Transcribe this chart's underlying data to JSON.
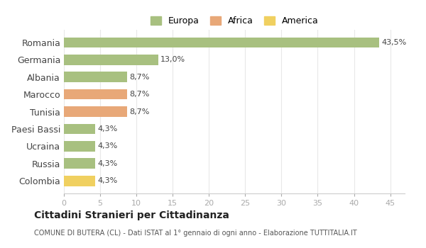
{
  "categories": [
    "Romania",
    "Germania",
    "Albania",
    "Marocco",
    "Tunisia",
    "Paesi Bassi",
    "Ucraina",
    "Russia",
    "Colombia"
  ],
  "values": [
    43.5,
    13.0,
    8.7,
    8.7,
    8.7,
    4.3,
    4.3,
    4.3,
    4.3
  ],
  "labels": [
    "43,5%",
    "13,0%",
    "8,7%",
    "8,7%",
    "8,7%",
    "4,3%",
    "4,3%",
    "4,3%",
    "4,3%"
  ],
  "colors": [
    "#a8c080",
    "#a8c080",
    "#a8c080",
    "#e8a878",
    "#e8a878",
    "#a8c080",
    "#a8c080",
    "#a8c080",
    "#f0d060"
  ],
  "legend": [
    {
      "label": "Europa",
      "color": "#a8c080"
    },
    {
      "label": "Africa",
      "color": "#e8a878"
    },
    {
      "label": "America",
      "color": "#f0d060"
    }
  ],
  "title": "Cittadini Stranieri per Cittadinanza",
  "subtitle": "COMUNE DI BUTERA (CL) - Dati ISTAT al 1° gennaio di ogni anno - Elaborazione TUTTITALIA.IT",
  "xlim": [
    0,
    47
  ],
  "xticks": [
    0,
    5,
    10,
    15,
    20,
    25,
    30,
    35,
    40,
    45
  ],
  "background_color": "#ffffff",
  "grid_color": "#e8e8e8"
}
